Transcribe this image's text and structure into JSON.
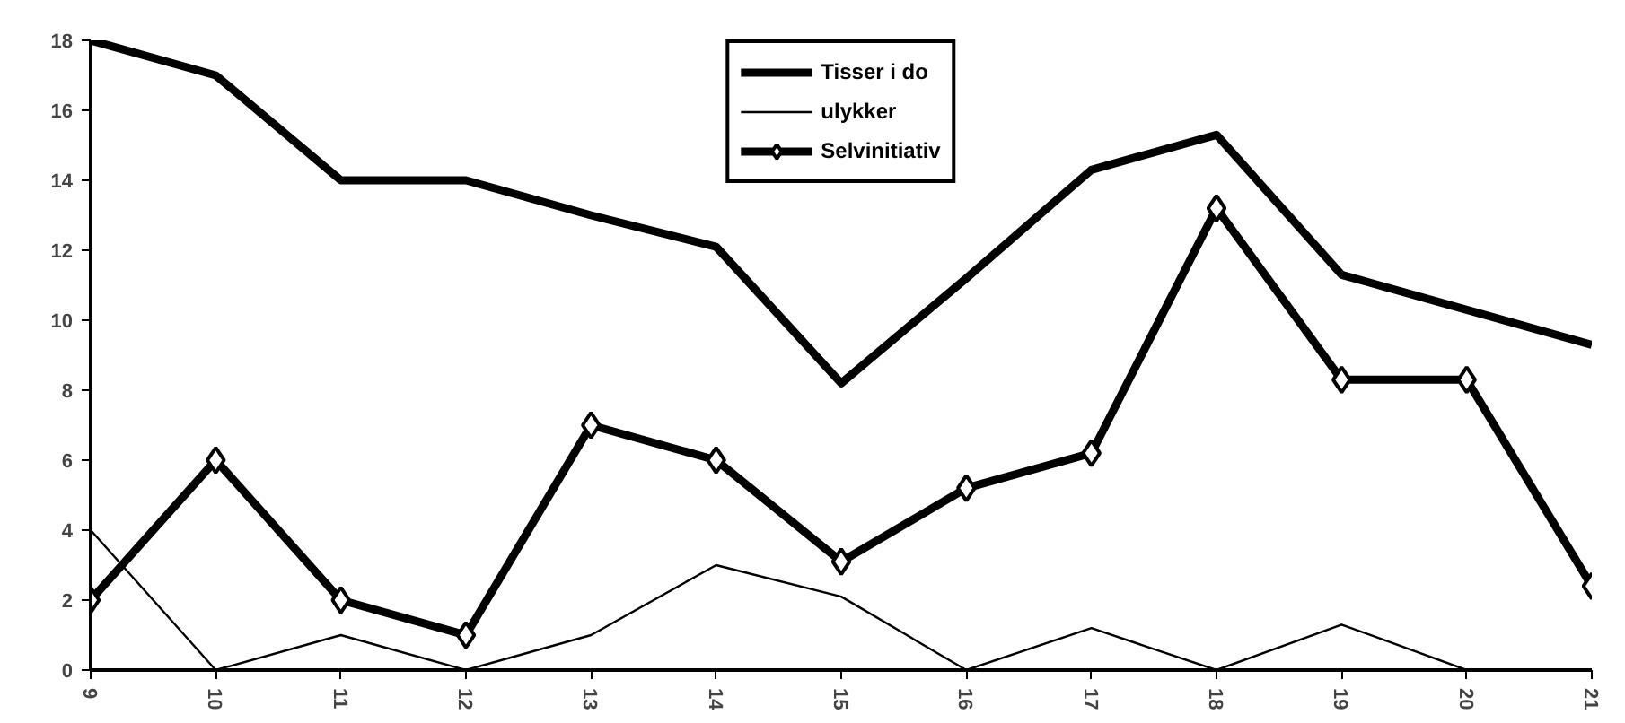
{
  "chart_data": {
    "type": "line",
    "x": [
      9,
      10,
      11,
      12,
      13,
      14,
      15,
      16,
      17,
      18,
      19,
      20,
      21
    ],
    "series": [
      {
        "name": "Tisser i do",
        "color": "#000000",
        "values": [
          18,
          17,
          14,
          14,
          13,
          12.1,
          8.2,
          11.2,
          14.3,
          15.3,
          11.3,
          10.3,
          9.3
        ]
      },
      {
        "name": "ulykker",
        "color": "#000000",
        "values": [
          4,
          0,
          1,
          0,
          1,
          3,
          2.1,
          0,
          1.2,
          0,
          1.3,
          0,
          0
        ]
      },
      {
        "name": "Selvinitiativ",
        "color": "#000000",
        "marker": "diamond",
        "values": [
          2,
          6,
          2,
          1,
          7,
          6,
          3.1,
          5.2,
          6.2,
          13.2,
          8.3,
          8.3,
          2.4
        ]
      }
    ],
    "xlim": [
      9,
      21
    ],
    "xticks": [
      9,
      10,
      11,
      12,
      13,
      14,
      15,
      16,
      17,
      18,
      19,
      20,
      21
    ],
    "ylim": [
      0,
      18
    ],
    "yticks": [
      0,
      2,
      4,
      6,
      8,
      10,
      12,
      14,
      16,
      18
    ],
    "grid": false,
    "legend": "top"
  }
}
